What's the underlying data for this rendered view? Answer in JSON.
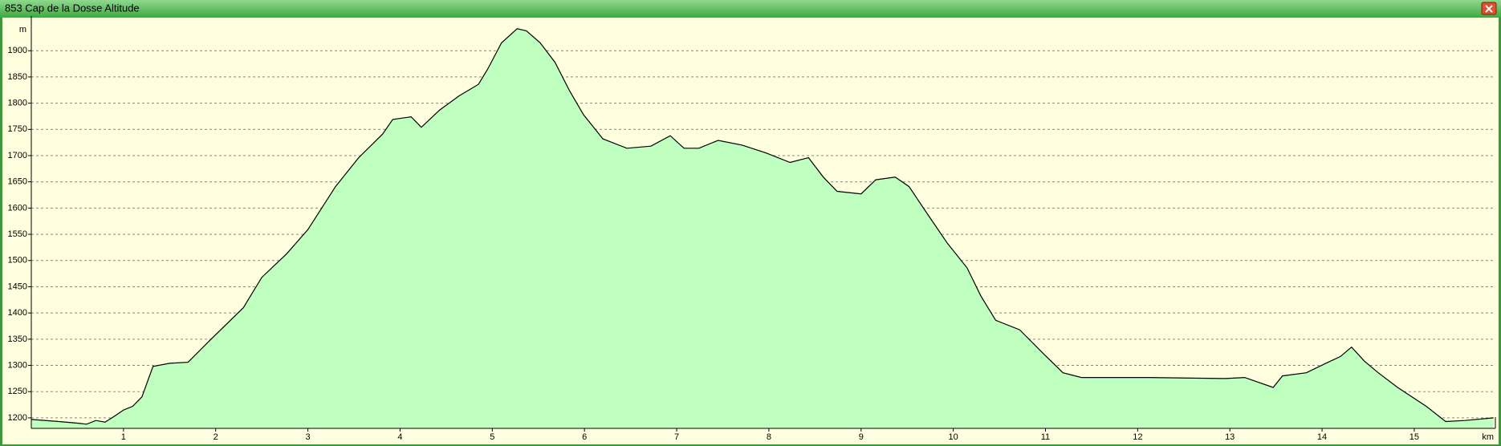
{
  "chart_data": {
    "type": "area",
    "title": "853 Cap de la Dosse Altitude",
    "y_label": "m",
    "x_label": "km",
    "x": [
      0,
      0.3,
      0.5,
      0.6,
      0.7,
      0.8,
      0.9,
      1.0,
      1.1,
      1.2,
      1.32,
      1.5,
      1.7,
      1.95,
      2.3,
      2.5,
      2.77,
      3.0,
      3.3,
      3.55,
      3.81,
      3.92,
      4.12,
      4.23,
      4.43,
      4.64,
      4.85,
      4.95,
      5.1,
      5.27,
      5.37,
      5.52,
      5.68,
      5.84,
      5.99,
      6.2,
      6.46,
      6.72,
      6.93,
      7.08,
      7.24,
      7.45,
      7.71,
      7.97,
      8.23,
      8.43,
      8.59,
      8.74,
      9.0,
      9.16,
      9.37,
      9.52,
      9.73,
      9.94,
      10.15,
      10.3,
      10.46,
      10.72,
      10.98,
      11.19,
      11.39,
      12.12,
      12.95,
      13.16,
      13.47,
      13.57,
      13.83,
      14.04,
      14.2,
      14.32,
      14.46,
      14.61,
      14.82,
      15.13,
      15.34,
      15.55,
      15.86
    ],
    "values": [
      1197,
      1193,
      1190,
      1188,
      1195,
      1192,
      1203,
      1215,
      1222,
      1240,
      1298,
      1304,
      1306,
      1350,
      1410,
      1468,
      1513,
      1559,
      1641,
      1696,
      1741,
      1769,
      1774,
      1754,
      1787,
      1814,
      1836,
      1865,
      1915,
      1942,
      1938,
      1915,
      1878,
      1823,
      1778,
      1732,
      1714,
      1718,
      1738,
      1714,
      1714,
      1729,
      1720,
      1705,
      1687,
      1696,
      1659,
      1632,
      1627,
      1654,
      1659,
      1641,
      1586,
      1532,
      1486,
      1432,
      1386,
      1368,
      1322,
      1286,
      1277,
      1277,
      1275,
      1277,
      1258,
      1280,
      1286,
      1304,
      1317,
      1335,
      1308,
      1286,
      1258,
      1222,
      1193,
      1195,
      1200
    ],
    "color": "#000000",
    "fill_color": "#bfffbf",
    "xlim": [
      0,
      15.88
    ],
    "xticks": [
      1,
      2,
      3,
      4,
      5,
      6,
      7,
      8,
      9,
      10,
      11,
      12,
      13,
      14,
      15
    ],
    "ylim": [
      1180,
      1960
    ],
    "yticks": [
      1200,
      1250,
      1300,
      1350,
      1400,
      1450,
      1500,
      1550,
      1600,
      1650,
      1700,
      1750,
      1800,
      1850,
      1900
    ],
    "grid": true
  }
}
